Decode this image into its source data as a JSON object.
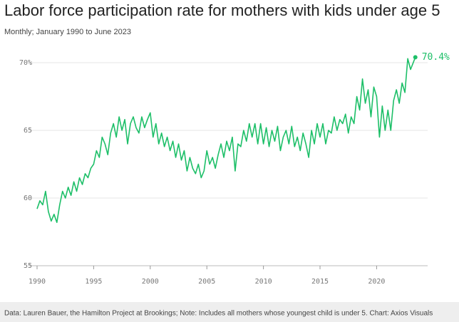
{
  "chart_data": {
    "type": "line",
    "title": "Labor force participation rate for mothers with kids under age 5",
    "subtitle": "Monthly; January 1990 to June 2023",
    "footer": "Data: Lauren Bauer, the Hamilton Project at Brookings; Note: Includes all mothers whose youngest child is under 5. Chart: Axios Visuals",
    "annotation": "70.4%",
    "color": "#1dbf68",
    "x": [
      1990,
      1990.25,
      1990.5,
      1990.75,
      1991,
      1991.25,
      1991.5,
      1991.75,
      1992,
      1992.25,
      1992.5,
      1992.75,
      1993,
      1993.25,
      1993.5,
      1993.75,
      1994,
      1994.25,
      1994.5,
      1994.75,
      1995,
      1995.25,
      1995.5,
      1995.75,
      1996,
      1996.25,
      1996.5,
      1996.75,
      1997,
      1997.25,
      1997.5,
      1997.75,
      1998,
      1998.25,
      1998.5,
      1998.75,
      1999,
      1999.25,
      1999.5,
      1999.75,
      2000,
      2000.25,
      2000.5,
      2000.75,
      2001,
      2001.25,
      2001.5,
      2001.75,
      2002,
      2002.25,
      2002.5,
      2002.75,
      2003,
      2003.25,
      2003.5,
      2003.75,
      2004,
      2004.25,
      2004.5,
      2004.75,
      2005,
      2005.25,
      2005.5,
      2005.75,
      2006,
      2006.25,
      2006.5,
      2006.75,
      2007,
      2007.25,
      2007.5,
      2007.75,
      2008,
      2008.25,
      2008.5,
      2008.75,
      2009,
      2009.25,
      2009.5,
      2009.75,
      2010,
      2010.25,
      2010.5,
      2010.75,
      2011,
      2011.25,
      2011.5,
      2011.75,
      2012,
      2012.25,
      2012.5,
      2012.75,
      2013,
      2013.25,
      2013.5,
      2013.75,
      2014,
      2014.25,
      2014.5,
      2014.75,
      2015,
      2015.25,
      2015.5,
      2015.75,
      2016,
      2016.25,
      2016.5,
      2016.75,
      2017,
      2017.25,
      2017.5,
      2017.75,
      2018,
      2018.25,
      2018.5,
      2018.75,
      2019,
      2019.25,
      2019.5,
      2019.75,
      2020,
      2020.25,
      2020.5,
      2020.75,
      2021,
      2021.25,
      2021.5,
      2021.75,
      2022,
      2022.25,
      2022.5,
      2022.75,
      2023,
      2023.42
    ],
    "values": [
      59.2,
      59.8,
      59.5,
      60.5,
      59.0,
      58.3,
      58.8,
      58.2,
      59.5,
      60.5,
      60.0,
      60.8,
      60.2,
      61.2,
      60.5,
      61.5,
      61.0,
      61.8,
      61.5,
      62.2,
      62.5,
      63.5,
      63.0,
      64.5,
      64.0,
      63.2,
      64.8,
      65.5,
      64.5,
      66.0,
      65.0,
      65.8,
      64.0,
      65.5,
      66.0,
      65.2,
      64.8,
      66.0,
      65.2,
      65.8,
      66.3,
      64.5,
      65.5,
      64.0,
      64.8,
      63.8,
      64.5,
      63.5,
      64.2,
      63.0,
      64.0,
      62.8,
      63.5,
      62.0,
      63.0,
      62.2,
      61.8,
      62.5,
      61.5,
      62.0,
      63.5,
      62.5,
      63.0,
      62.2,
      63.2,
      64.0,
      63.0,
      64.2,
      63.5,
      64.5,
      62.0,
      64.0,
      63.8,
      65.0,
      64.2,
      65.5,
      64.5,
      65.5,
      64.0,
      65.5,
      64.0,
      65.2,
      63.8,
      65.0,
      64.2,
      65.3,
      63.5,
      64.5,
      65.0,
      64.0,
      65.3,
      63.8,
      64.5,
      63.5,
      64.8,
      64.0,
      63.0,
      65.0,
      64.0,
      65.5,
      64.5,
      65.5,
      64.0,
      65.0,
      64.8,
      66.0,
      65.0,
      65.8,
      65.5,
      66.2,
      64.8,
      66.0,
      65.5,
      67.5,
      66.5,
      68.8,
      67.0,
      68.0,
      66.0,
      68.2,
      67.5,
      64.5,
      66.8,
      65.0,
      66.5,
      65.0,
      67.2,
      68.0,
      67.0,
      68.5,
      67.8,
      70.3,
      69.5,
      70.4
    ],
    "xlim": [
      1990,
      2023.5
    ],
    "ylim": [
      55,
      70.4
    ],
    "xticks": [
      1990,
      1995,
      2000,
      2005,
      2010,
      2015,
      2020
    ],
    "yticks": [
      55,
      60,
      65,
      {
        "value": 70,
        "label": "70%"
      }
    ],
    "grid": true
  }
}
